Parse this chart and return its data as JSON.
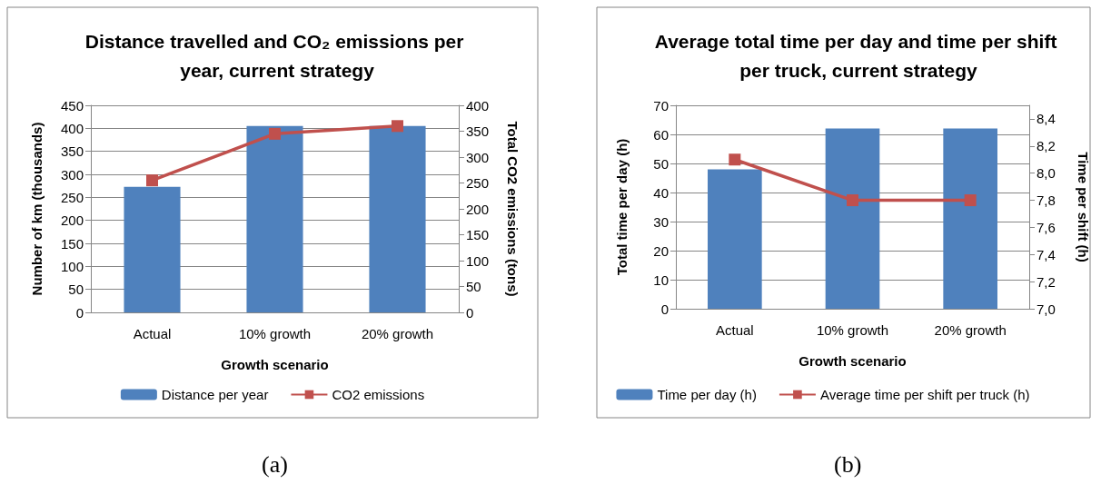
{
  "chart_data": [
    {
      "type": "bar",
      "title": "Distance travelled and CO₂ emissions per year, current strategy",
      "xlabel": "Growth scenario",
      "ylabel": "Number of km (thousands)",
      "y2label": "Total CO2 emissions (tons)",
      "categories": [
        "Actual",
        "10% growth",
        "20% growth"
      ],
      "series": [
        {
          "name": "Distance per year",
          "color": "#4f81bd",
          "values": [
            273,
            405,
            405
          ]
        },
        {
          "name": "CO2 emissions",
          "type": "line",
          "axis": "y2",
          "color": "#c0504d",
          "values": [
            255,
            345,
            360
          ]
        }
      ],
      "ylim": [
        0,
        450
      ],
      "yticks": [
        0,
        50,
        100,
        150,
        200,
        250,
        300,
        350,
        400,
        450
      ],
      "y2lim": [
        0,
        400
      ],
      "y2ticks": [
        0,
        50,
        100,
        150,
        200,
        250,
        300,
        350,
        400
      ],
      "grid": "y",
      "legend": "bottom",
      "marker": "square",
      "annotations": [
        "(a)"
      ]
    },
    {
      "type": "bar",
      "title": "Average total time per day and time per shift per truck, current strategy",
      "xlabel": "Growth scenario",
      "ylabel": "Total time per day (h)",
      "y2label": "Time per shift (h)",
      "categories": [
        "Actual",
        "10% growth",
        "20% growth"
      ],
      "series": [
        {
          "name": "Time per day (h)",
          "color": "#4f81bd",
          "values": [
            48,
            62,
            62
          ]
        },
        {
          "name": "Average time per shift per truck (h)",
          "type": "line",
          "axis": "y2",
          "color": "#c0504d",
          "values": [
            8.1,
            7.8,
            7.8
          ]
        }
      ],
      "ylim": [
        0,
        70
      ],
      "yticks": [
        0,
        10,
        20,
        30,
        40,
        50,
        60,
        70
      ],
      "y2lim": [
        7.0,
        8.5
      ],
      "y2ticks": [
        {
          "value": 7.0,
          "label": "7,0"
        },
        {
          "value": 7.2,
          "label": "7,2"
        },
        {
          "value": 7.4,
          "label": "7,4"
        },
        {
          "value": 7.6,
          "label": "7,6"
        },
        {
          "value": 7.8,
          "label": "7,8"
        },
        {
          "value": 8.0,
          "label": "8,0"
        },
        {
          "value": 8.2,
          "label": "8,2"
        },
        {
          "value": 8.4,
          "label": "8,4"
        }
      ],
      "grid": "y",
      "legend": "bottom",
      "marker": "square",
      "annotations": [
        "(b)"
      ]
    }
  ]
}
